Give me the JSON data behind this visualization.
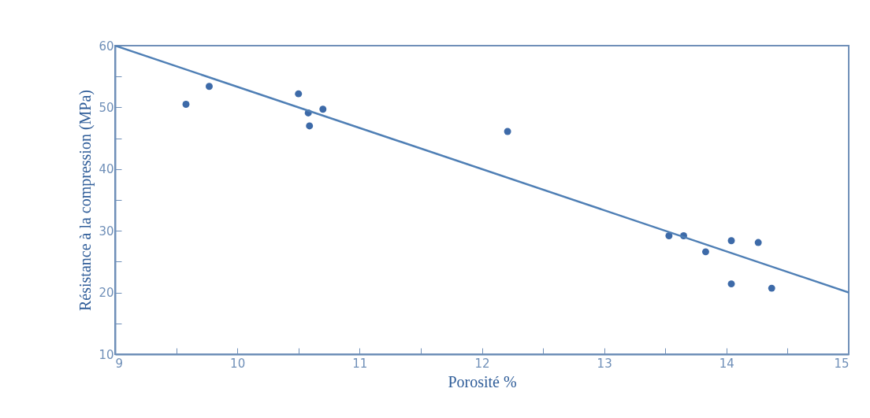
{
  "chart_data": {
    "type": "scatter",
    "xlabel": "Porosité %",
    "ylabel": "Résistance à la compression (MPa)",
    "xlim": [
      9,
      15
    ],
    "ylim": [
      10,
      60
    ],
    "xticks": [
      9,
      {
        "value": 9.5,
        "label": null
      },
      10,
      {
        "value": 10.5,
        "label": null
      },
      11,
      {
        "value": 11.5,
        "label": null
      },
      12,
      {
        "value": 12.5,
        "label": null
      },
      13,
      {
        "value": 13.5,
        "label": null
      },
      14,
      {
        "value": 14.5,
        "label": null
      },
      15
    ],
    "yticks": [
      10,
      {
        "value": 15,
        "label": null
      },
      20,
      {
        "value": 25,
        "label": null
      },
      30,
      {
        "value": 35,
        "label": null
      },
      40,
      {
        "value": 45,
        "label": null
      },
      50,
      {
        "value": 55,
        "label": null
      },
      60
    ],
    "grid": false,
    "series": [
      {
        "type": "scatter",
        "marker": "circle",
        "color": "#3d6aa8",
        "x": [
          9.58,
          9.77,
          10.5,
          10.58,
          10.59,
          10.7,
          12.21,
          13.53,
          13.65,
          13.83,
          14.04,
          14.26,
          14.04,
          14.37
        ],
        "values": [
          50.5,
          53.4,
          52.2,
          49.1,
          47.0,
          49.7,
          46.1,
          29.2,
          29.2,
          26.6,
          28.4,
          28.1,
          21.4,
          20.7
        ]
      },
      {
        "type": "line",
        "color": "#4f7fb5",
        "x": [
          9,
          15
        ],
        "values": [
          60,
          20
        ],
        "line_style": "solid"
      }
    ]
  }
}
